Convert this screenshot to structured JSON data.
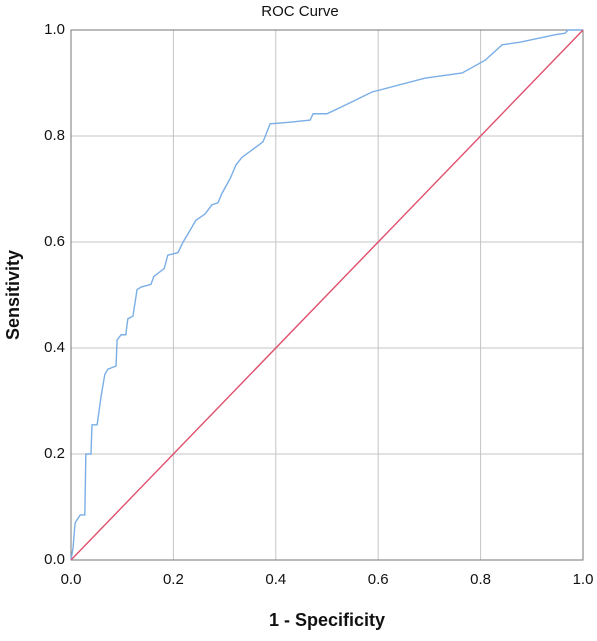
{
  "chart_data": {
    "type": "line",
    "title": "ROC Curve",
    "x_label": "1 - Specificity",
    "y_label": "Sensitivity",
    "xlim": [
      0,
      1
    ],
    "ylim": [
      0,
      1
    ],
    "xticks": [
      {
        "value": 0,
        "label": "0.0"
      },
      0.2,
      0.4,
      0.6,
      0.8,
      {
        "value": 1,
        "label": "1.0"
      }
    ],
    "yticks": [
      {
        "value": 0,
        "label": "0.0"
      },
      0.2,
      0.4,
      0.6,
      0.8,
      {
        "value": 1,
        "label": "1.0"
      }
    ],
    "grid": true,
    "series": [
      {
        "color": "#7aaee6",
        "x": [
          0,
          0.004,
          0.008,
          0.018,
          0.027,
          0.029,
          0.039,
          0.041,
          0.051,
          0.059,
          0.066,
          0.072,
          0.088,
          0.09,
          0.098,
          0.107,
          0.111,
          0.121,
          0.129,
          0.137,
          0.156,
          0.162,
          0.182,
          0.189,
          0.209,
          0.219,
          0.227,
          0.244,
          0.262,
          0.275,
          0.287,
          0.295,
          0.311,
          0.322,
          0.334,
          0.354,
          0.375,
          0.389,
          0.428,
          0.467,
          0.473,
          0.5,
          0.535,
          0.588,
          0.691,
          0.764,
          0.809,
          0.842,
          0.877,
          0.916,
          0.945,
          0.965,
          0.971,
          1
        ],
        "values": [
          0,
          0.023,
          0.07,
          0.085,
          0.085,
          0.2,
          0.2,
          0.255,
          0.255,
          0.31,
          0.35,
          0.36,
          0.366,
          0.415,
          0.425,
          0.425,
          0.455,
          0.46,
          0.51,
          0.515,
          0.52,
          0.535,
          0.55,
          0.575,
          0.58,
          0.6,
          0.613,
          0.641,
          0.653,
          0.67,
          0.674,
          0.692,
          0.72,
          0.745,
          0.76,
          0.774,
          0.789,
          0.823,
          0.826,
          0.83,
          0.842,
          0.842,
          0.858,
          0.883,
          0.909,
          0.919,
          0.943,
          0.972,
          0.977,
          0.985,
          0.991,
          0.994,
          1,
          1
        ]
      },
      {
        "color": "#e0506e",
        "x": [
          0,
          1
        ],
        "values": [
          0,
          1
        ]
      }
    ]
  }
}
